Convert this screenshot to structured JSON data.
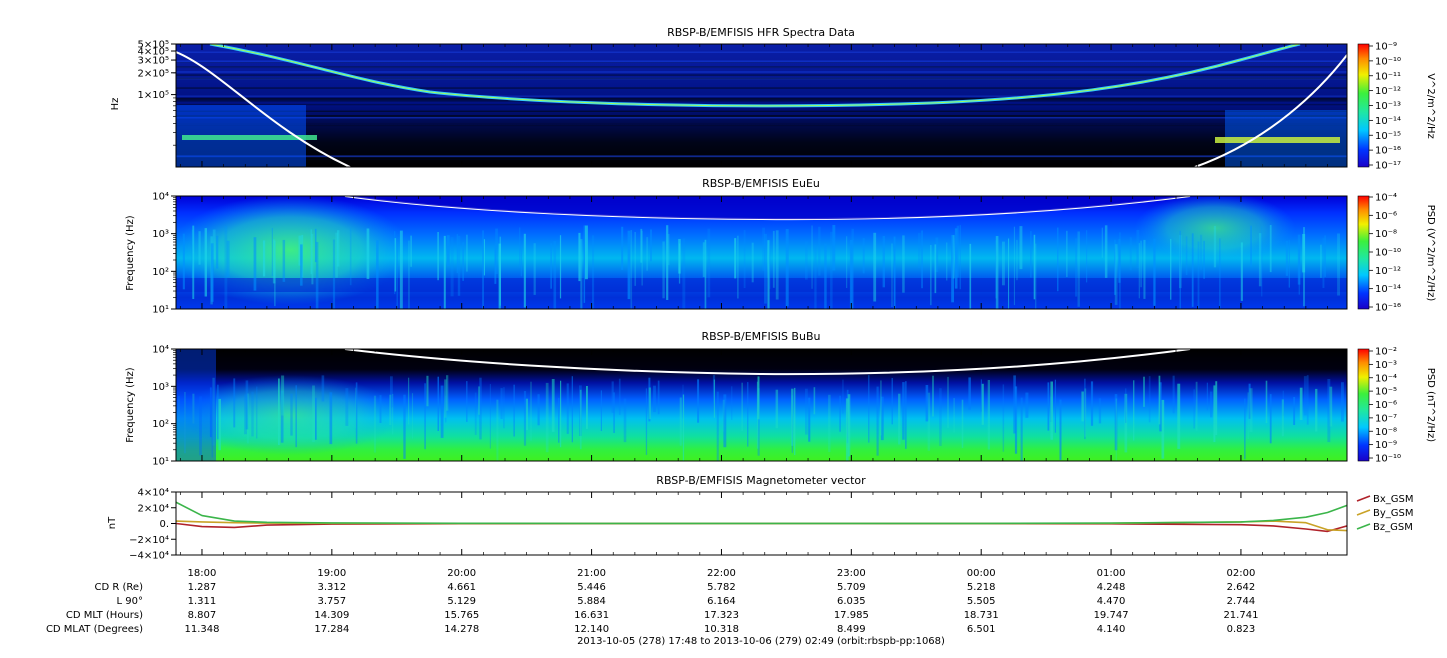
{
  "figure": {
    "footer": "2013-10-05 (278) 17:48 to 2013-10-06 (279) 02:49 (orbit:rbspb-pp:1068)",
    "time_ticks": [
      "18:00",
      "19:00",
      "20:00",
      "21:00",
      "22:00",
      "23:00",
      "00:00",
      "01:00",
      "02:00"
    ],
    "ephemeris": [
      {
        "label": "CD R (Re)",
        "values": [
          "1.287",
          "3.312",
          "4.661",
          "5.446",
          "5.782",
          "5.709",
          "5.218",
          "4.248",
          "2.642"
        ]
      },
      {
        "label": "L 90°",
        "values": [
          "1.311",
          "3.757",
          "5.129",
          "5.884",
          "6.164",
          "6.035",
          "5.505",
          "4.470",
          "2.744"
        ]
      },
      {
        "label": "CD MLT (Hours)",
        "values": [
          "8.807",
          "14.309",
          "15.765",
          "16.631",
          "17.323",
          "17.985",
          "18.731",
          "19.747",
          "21.741"
        ]
      },
      {
        "label": "CD MLAT (Degrees)",
        "values": [
          "11.348",
          "17.284",
          "14.278",
          "12.140",
          "10.318",
          "8.499",
          "6.501",
          "4.140",
          "0.823"
        ]
      }
    ]
  },
  "chart_data": [
    {
      "type": "heatmap",
      "title": "RBSP-B/EMFISIS  HFR Spectra Data",
      "ylabel": "Hz",
      "yscale": "log",
      "ylim": [
        10000,
        500000
      ],
      "y_tick_labels": [
        "5×10⁵",
        "4×10⁵",
        "3×10⁵",
        "2×10⁵",
        "1×10⁵"
      ],
      "colorbar": {
        "label": "V^2/m^2/Hz",
        "scale": "log",
        "ticks": [
          "10⁻⁹",
          "10⁻¹⁰",
          "10⁻¹¹",
          "10⁻¹²",
          "10⁻¹³",
          "10⁻¹⁴",
          "10⁻¹⁵",
          "10⁻¹⁶",
          "10⁻¹⁷"
        ]
      },
      "x_range": [
        "2013-10-05T17:48",
        "2013-10-06T02:49"
      ],
      "white_line": "upper hybrid / plasma frequency trace"
    },
    {
      "type": "heatmap",
      "title": "RBSP-B/EMFISIS  EuEu",
      "ylabel": "Frequency (Hz)",
      "yscale": "log",
      "ylim": [
        10,
        10000
      ],
      "y_tick_labels": [
        "10⁴",
        "10³",
        "10²",
        "10¹"
      ],
      "colorbar": {
        "label": "PSD (V^2/m^2/Hz)",
        "scale": "log",
        "ticks": [
          "10⁻⁴",
          "10⁻⁶",
          "10⁻⁸",
          "10⁻¹⁰",
          "10⁻¹²",
          "10⁻¹⁴",
          "10⁻¹⁶"
        ]
      },
      "x_range": [
        "2013-10-05T17:48",
        "2013-10-06T02:49"
      ]
    },
    {
      "type": "heatmap",
      "title": "RBSP-B/EMFISIS  BuBu",
      "ylabel": "Frequency (Hz)",
      "yscale": "log",
      "ylim": [
        10,
        10000
      ],
      "y_tick_labels": [
        "10⁴",
        "10³",
        "10²",
        "10¹"
      ],
      "colorbar": {
        "label": "PSD (nT^2/Hz)",
        "scale": "log",
        "ticks": [
          "10⁻²",
          "10⁻³",
          "10⁻⁴",
          "10⁻⁵",
          "10⁻⁶",
          "10⁻⁷",
          "10⁻⁸",
          "10⁻⁹",
          "10⁻¹⁰"
        ]
      },
      "x_range": [
        "2013-10-05T17:48",
        "2013-10-06T02:49"
      ]
    },
    {
      "type": "line",
      "title": "RBSP-B/EMFISIS  Magnetometer vector",
      "ylabel": "nT",
      "ylim": [
        -40000,
        40000
      ],
      "y_tick_labels": [
        "4×10⁴",
        "2×10⁴",
        "0.",
        "−2×10⁴",
        "−4×10⁴"
      ],
      "x": [
        "17:48",
        "18:00",
        "18:15",
        "18:30",
        "19:00",
        "20:00",
        "21:00",
        "22:00",
        "23:00",
        "00:00",
        "01:00",
        "02:00",
        "02:15",
        "02:30",
        "02:40",
        "02:49"
      ],
      "series": [
        {
          "name": "Bx_GSM",
          "color": "#b0222a",
          "values": [
            0,
            -4000,
            -5000,
            -2000,
            -800,
            -300,
            -100,
            -50,
            -50,
            -100,
            -400,
            -1500,
            -3000,
            -7000,
            -10000,
            -3000
          ]
        },
        {
          "name": "By_GSM",
          "color": "#c9a227",
          "values": [
            3000,
            2000,
            1000,
            500,
            200,
            100,
            50,
            30,
            30,
            50,
            200,
            2000,
            3000,
            1000,
            -8000,
            -9000
          ]
        },
        {
          "name": "Bz_GSM",
          "color": "#3bb54a",
          "values": [
            27000,
            10000,
            3000,
            1500,
            700,
            300,
            150,
            100,
            100,
            150,
            500,
            2000,
            4000,
            8000,
            14000,
            23000
          ]
        }
      ]
    }
  ]
}
